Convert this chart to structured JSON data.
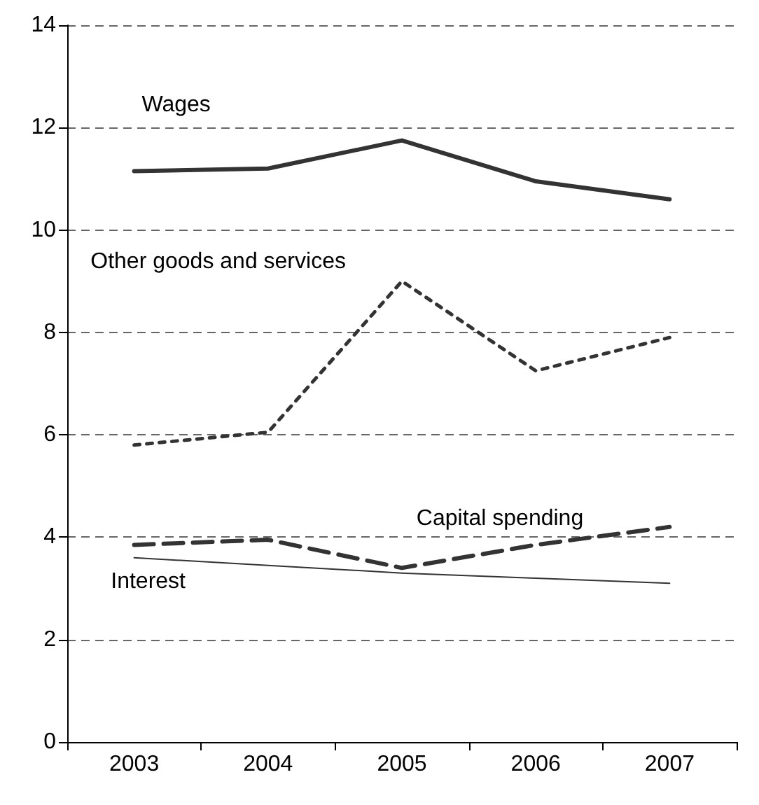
{
  "chart_data": {
    "type": "line",
    "categories": [
      "2003",
      "2004",
      "2005",
      "2006",
      "2007"
    ],
    "series": [
      {
        "name": "Wages",
        "color": "#333333",
        "line_style": "solid",
        "values": [
          11.15,
          11.2,
          11.75,
          10.95,
          10.6
        ]
      },
      {
        "name": "Other goods and services",
        "color": "#333333",
        "line_style": "dotted",
        "values": [
          5.8,
          6.05,
          9.0,
          7.25,
          7.9
        ]
      },
      {
        "name": "Capital spending",
        "color": "#333333",
        "line_style": "dashed",
        "values": [
          3.85,
          3.95,
          3.4,
          3.85,
          4.2
        ]
      },
      {
        "name": "Interest",
        "color": "#333333",
        "line_style": "solid",
        "values": [
          3.6,
          3.45,
          3.3,
          3.2,
          3.1
        ]
      }
    ],
    "ylim": [
      0,
      14
    ],
    "yticks": [
      0,
      2,
      4,
      6,
      8,
      10,
      12,
      14
    ],
    "grid": "y",
    "legend": false,
    "marker": "none"
  }
}
